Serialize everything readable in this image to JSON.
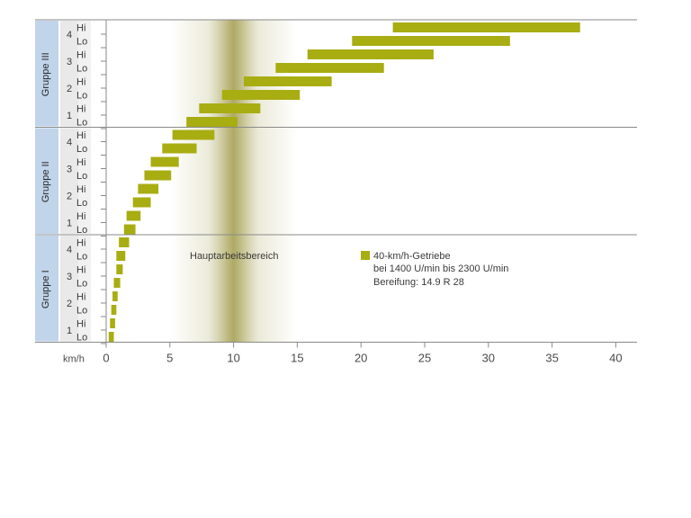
{
  "chart_data": {
    "type": "bar",
    "orientation": "horizontal-range",
    "xlabel": "km/h",
    "xlim": [
      0,
      40
    ],
    "xticks": [
      0,
      5,
      10,
      15,
      20,
      25,
      30,
      35,
      40
    ],
    "bar_color": "#a8ad12",
    "highlight": {
      "label": "Hauptarbeitsbereich",
      "from": 5,
      "to": 15,
      "center": 10
    },
    "legend": {
      "label": "40-km/h-Getriebe",
      "lines": [
        "bei 1400 U/min bis 2300 U/min",
        "Bereifung: 14.9 R 28"
      ]
    },
    "groups": [
      {
        "name": "Gruppe III",
        "gears": [
          {
            "gear": "4",
            "rows": [
              {
                "label": "Hi",
                "start": 22.5,
                "end": 37.2
              },
              {
                "label": "Lo",
                "start": 19.3,
                "end": 31.7
              }
            ]
          },
          {
            "gear": "3",
            "rows": [
              {
                "label": "Hi",
                "start": 15.8,
                "end": 25.7
              },
              {
                "label": "Lo",
                "start": 13.3,
                "end": 21.8
              }
            ]
          },
          {
            "gear": "2",
            "rows": [
              {
                "label": "Hi",
                "start": 10.8,
                "end": 17.7
              },
              {
                "label": "Lo",
                "start": 9.1,
                "end": 15.2
              }
            ]
          },
          {
            "gear": "1",
            "rows": [
              {
                "label": "Hi",
                "start": 7.3,
                "end": 12.1
              },
              {
                "label": "Lo",
                "start": 6.3,
                "end": 10.3
              }
            ]
          }
        ]
      },
      {
        "name": "Gruppe II",
        "gears": [
          {
            "gear": "4",
            "rows": [
              {
                "label": "Hi",
                "start": 5.2,
                "end": 8.5
              },
              {
                "label": "Lo",
                "start": 4.4,
                "end": 7.1
              }
            ]
          },
          {
            "gear": "3",
            "rows": [
              {
                "label": "Hi",
                "start": 3.5,
                "end": 5.7
              },
              {
                "label": "Lo",
                "start": 3.0,
                "end": 5.1
              }
            ]
          },
          {
            "gear": "2",
            "rows": [
              {
                "label": "Hi",
                "start": 2.5,
                "end": 4.1
              },
              {
                "label": "Lo",
                "start": 2.1,
                "end": 3.5
              }
            ]
          },
          {
            "gear": "1",
            "rows": [
              {
                "label": "Hi",
                "start": 1.6,
                "end": 2.7
              },
              {
                "label": "Lo",
                "start": 1.4,
                "end": 2.3
              }
            ]
          }
        ]
      },
      {
        "name": "Gruppe I",
        "gears": [
          {
            "gear": "4",
            "rows": [
              {
                "label": "Hi",
                "start": 1.0,
                "end": 1.8
              },
              {
                "label": "Lo",
                "start": 0.8,
                "end": 1.5
              }
            ]
          },
          {
            "gear": "3",
            "rows": [
              {
                "label": "Hi",
                "start": 0.8,
                "end": 1.3
              },
              {
                "label": "Lo",
                "start": 0.6,
                "end": 1.1
              }
            ]
          },
          {
            "gear": "2",
            "rows": [
              {
                "label": "Hi",
                "start": 0.5,
                "end": 0.9
              },
              {
                "label": "Lo",
                "start": 0.4,
                "end": 0.8
              }
            ]
          },
          {
            "gear": "1",
            "rows": [
              {
                "label": "Hi",
                "start": 0.3,
                "end": 0.7
              },
              {
                "label": "Lo",
                "start": 0.2,
                "end": 0.6
              }
            ]
          }
        ]
      }
    ]
  }
}
